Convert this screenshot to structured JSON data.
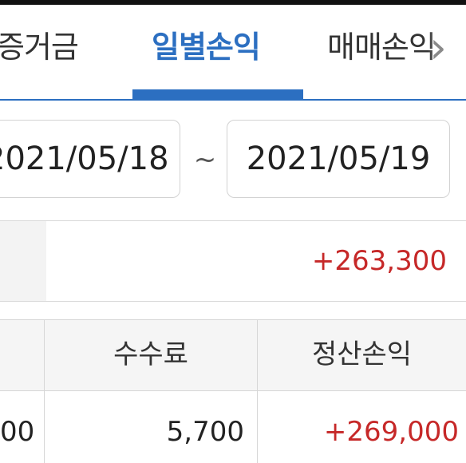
{
  "tabs": [
    {
      "label": "증거금",
      "active": false
    },
    {
      "label": "일별손익",
      "active": true
    },
    {
      "label": "매매손익",
      "active": false
    }
  ],
  "date_range": {
    "start": "2021/05/18",
    "separator": "~",
    "end": "2021/05/19"
  },
  "summary": {
    "total_pnl": "+263,300"
  },
  "table": {
    "headers": [
      "수수료",
      "정산손익"
    ],
    "rows": [
      {
        "col1_partial": "00",
        "fee": "5,700",
        "settlement_pnl": "+269,000"
      }
    ]
  },
  "colors": {
    "accent": "#2c6fc1",
    "positive": "#c62828",
    "header_bg": "#f5f5f5"
  },
  "icons": {
    "tab_scroll": "chevron-right-icon"
  }
}
